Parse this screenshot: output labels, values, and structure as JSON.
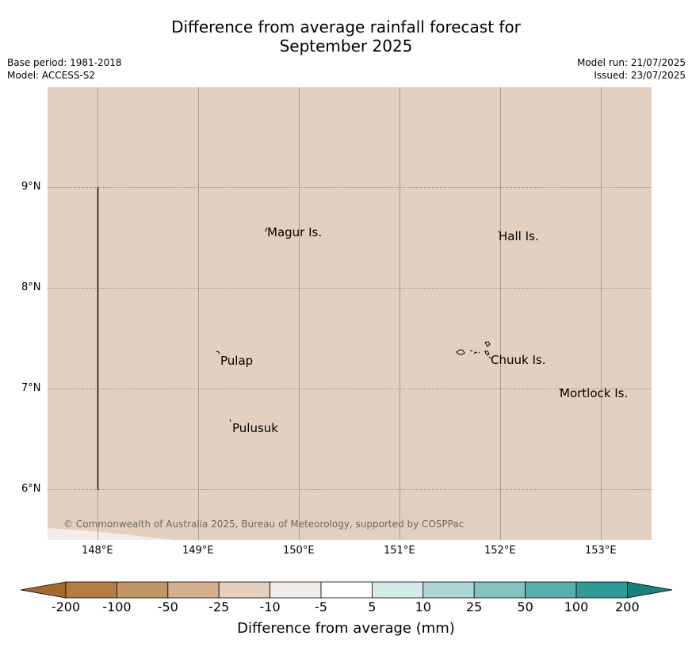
{
  "title_line1": "Difference from average rainfall forecast for",
  "title_line2": "September 2025",
  "base_period": "Base period: 1981-2018",
  "model": "Model: ACCESS-S2",
  "model_run": "Model run: 21/07/2025",
  "issued": "Issued: 23/07/2025",
  "copyright": "© Commonwealth of Australia 2025, Bureau of Meteorology, supported by COSPPac",
  "lat_labels": [
    "9°N",
    "8°N",
    "7°N",
    "6°N"
  ],
  "lon_labels": [
    "148°E",
    "149°E",
    "150°E",
    "151°E",
    "152°E",
    "153°E"
  ],
  "places": [
    "Magur Is.",
    "Hall Is.",
    "Pulap",
    "Chuuk Is.",
    "Mortlock Is.",
    "Pulusuk"
  ],
  "colorbar": {
    "label": "Difference from average (mm)",
    "ticks": [
      "-200",
      "-100",
      "-50",
      "-25",
      "-10",
      "-5",
      "5",
      "10",
      "25",
      "50",
      "100",
      "200"
    ],
    "colors": [
      "#a46a2c",
      "#b47b43",
      "#c39466",
      "#d3b08f",
      "#e3d0c0",
      "#f2ede8",
      "#ffffff",
      "#d5ebe8",
      "#aed6d4",
      "#84c2bf",
      "#5baeab",
      "#319a96",
      "#1b7f7b"
    ]
  },
  "map_fill_color": "#e3d0c0"
}
